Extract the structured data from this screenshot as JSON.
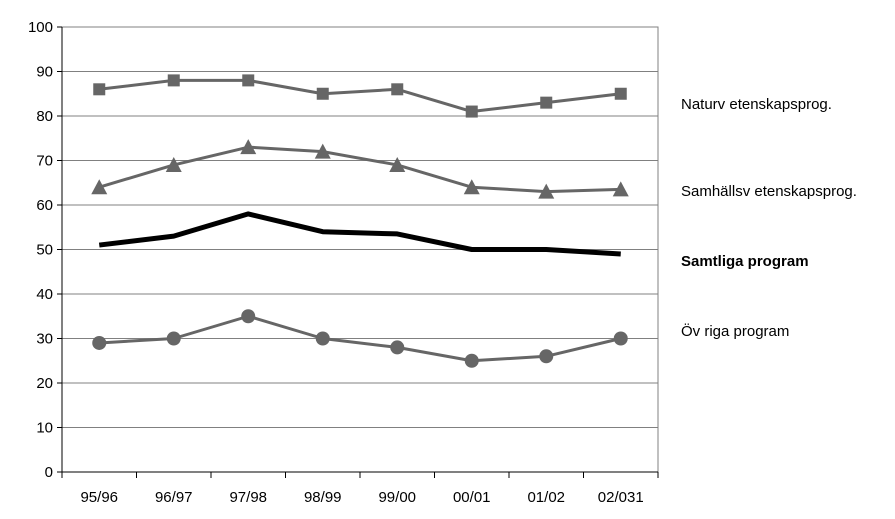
{
  "chart_data": {
    "type": "line",
    "categories": [
      "95/96",
      "96/97",
      "97/98",
      "98/99",
      "99/00",
      "00/01",
      "01/02",
      "02/031"
    ],
    "ylim": [
      0,
      100
    ],
    "yticks": [
      "0",
      "10",
      "20",
      "30",
      "40",
      "50",
      "60",
      "70",
      "80",
      "90",
      "100"
    ],
    "grid": true,
    "legend_position": "right",
    "series": [
      {
        "name": "Naturv etenskapsprog.",
        "values": [
          86,
          88,
          88,
          85,
          86,
          81,
          83,
          85
        ],
        "color": "#666666",
        "marker": "square",
        "emphasis": false
      },
      {
        "name": "Samhällsv etenskapsprog.",
        "values": [
          64,
          69,
          73,
          72,
          69,
          64,
          63,
          63.5
        ],
        "color": "#666666",
        "marker": "triangle",
        "emphasis": false
      },
      {
        "name": "Samtliga program",
        "values": [
          51,
          53,
          58,
          54,
          53.5,
          50,
          50,
          49
        ],
        "color": "#000000",
        "marker": "none",
        "emphasis": true
      },
      {
        "name": "Öv riga program",
        "values": [
          29,
          30,
          35,
          30,
          28,
          25,
          26,
          30
        ],
        "color": "#666666",
        "marker": "circle",
        "emphasis": false
      }
    ]
  }
}
